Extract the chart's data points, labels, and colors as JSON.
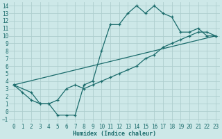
{
  "xlabel": "Humidex (Indice chaleur)",
  "bg_color": "#cde8e8",
  "grid_color": "#aecece",
  "line_color": "#1a6b6b",
  "xlim": [
    -0.5,
    23.5
  ],
  "ylim": [
    -1.5,
    14.5
  ],
  "xticks": [
    0,
    1,
    2,
    3,
    4,
    5,
    6,
    7,
    8,
    9,
    10,
    11,
    12,
    13,
    14,
    15,
    16,
    17,
    18,
    19,
    20,
    21,
    22,
    23
  ],
  "yticks": [
    -1,
    0,
    1,
    2,
    3,
    4,
    5,
    6,
    7,
    8,
    9,
    10,
    11,
    12,
    13,
    14
  ],
  "curve1_x": [
    0,
    1,
    2,
    3,
    4,
    5,
    6,
    7,
    8,
    9,
    10,
    11,
    12,
    13,
    14,
    15,
    16,
    17,
    18,
    19,
    20,
    21,
    22,
    23
  ],
  "curve1_y": [
    3.5,
    2.5,
    1.5,
    1,
    1,
    -0.5,
    -0.5,
    -0.5,
    3.5,
    4,
    8,
    11.5,
    11.5,
    13,
    14,
    13,
    14,
    13,
    12.5,
    10.5,
    10.5,
    11,
    10,
    10
  ],
  "curve2_x": [
    0,
    2,
    3,
    4,
    5,
    6,
    7,
    8,
    9,
    10,
    11,
    12,
    13,
    14,
    15,
    16,
    17,
    18,
    19,
    20,
    21,
    22,
    23
  ],
  "curve2_y": [
    3.5,
    2.5,
    1,
    1,
    1.5,
    3,
    3.5,
    3,
    3.5,
    4,
    4.5,
    5,
    5.5,
    6,
    7,
    7.5,
    8.5,
    9,
    9.5,
    10,
    10.5,
    10.5,
    10
  ],
  "curve3_x": [
    0,
    23
  ],
  "curve3_y": [
    3.5,
    10
  ]
}
